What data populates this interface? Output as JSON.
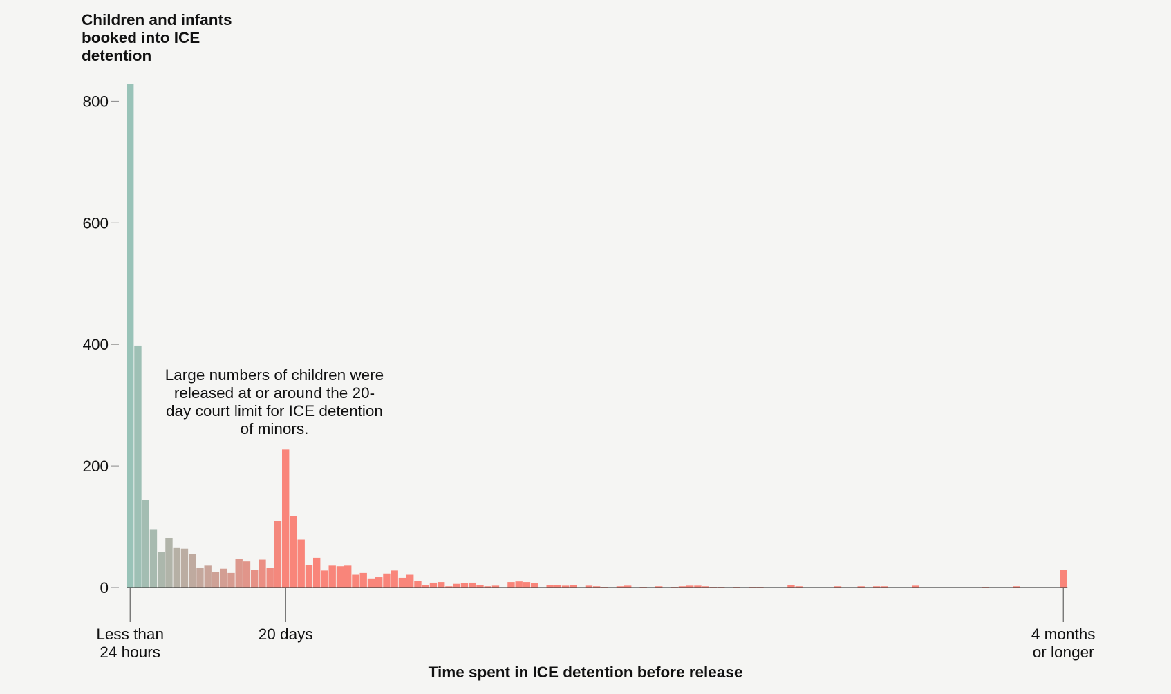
{
  "chart_data": {
    "type": "bar",
    "title": "Children and infants booked into ICE detention",
    "xlabel": "Time spent in ICE detention before release",
    "ylabel": "",
    "ylim": [
      0,
      830
    ],
    "yticks": [
      0,
      200,
      400,
      600,
      800
    ],
    "xtick_labels": [
      {
        "day_index": 0,
        "label": "Less than\n24 hours"
      },
      {
        "day_index": 20,
        "label": "20 days"
      },
      {
        "day_index": 120,
        "label": "4 months\nor longer"
      }
    ],
    "annotation": "Large numbers of children were released at or around the 20-day court limit for ICE detention of minors.",
    "colors": {
      "start": "#99c3b8",
      "end": "#f9857a",
      "axis": "#444444",
      "background": "#f5f5f3"
    },
    "values": [
      828,
      398,
      144,
      95,
      59,
      81,
      65,
      64,
      55,
      33,
      36,
      25,
      31,
      24,
      47,
      43,
      29,
      46,
      32,
      110,
      227,
      118,
      79,
      37,
      49,
      28,
      36,
      35,
      36,
      21,
      24,
      15,
      17,
      23,
      28,
      16,
      21,
      11,
      4,
      8,
      9,
      2,
      6,
      7,
      8,
      4,
      2,
      3,
      0,
      9,
      10,
      9,
      7,
      0,
      4,
      4,
      3,
      4,
      0,
      3,
      2,
      1,
      0,
      2,
      3,
      0,
      1,
      0,
      2,
      0,
      1,
      2,
      3,
      3,
      2,
      1,
      1,
      0,
      1,
      0,
      1,
      1,
      0,
      0,
      0,
      4,
      2,
      0,
      0,
      0,
      0,
      2,
      0,
      0,
      2,
      0,
      2,
      2,
      0,
      0,
      0,
      3,
      0,
      0,
      0,
      0,
      0,
      0,
      0,
      0,
      1,
      0,
      0,
      0,
      2,
      0,
      0,
      0,
      0,
      0,
      29
    ]
  }
}
